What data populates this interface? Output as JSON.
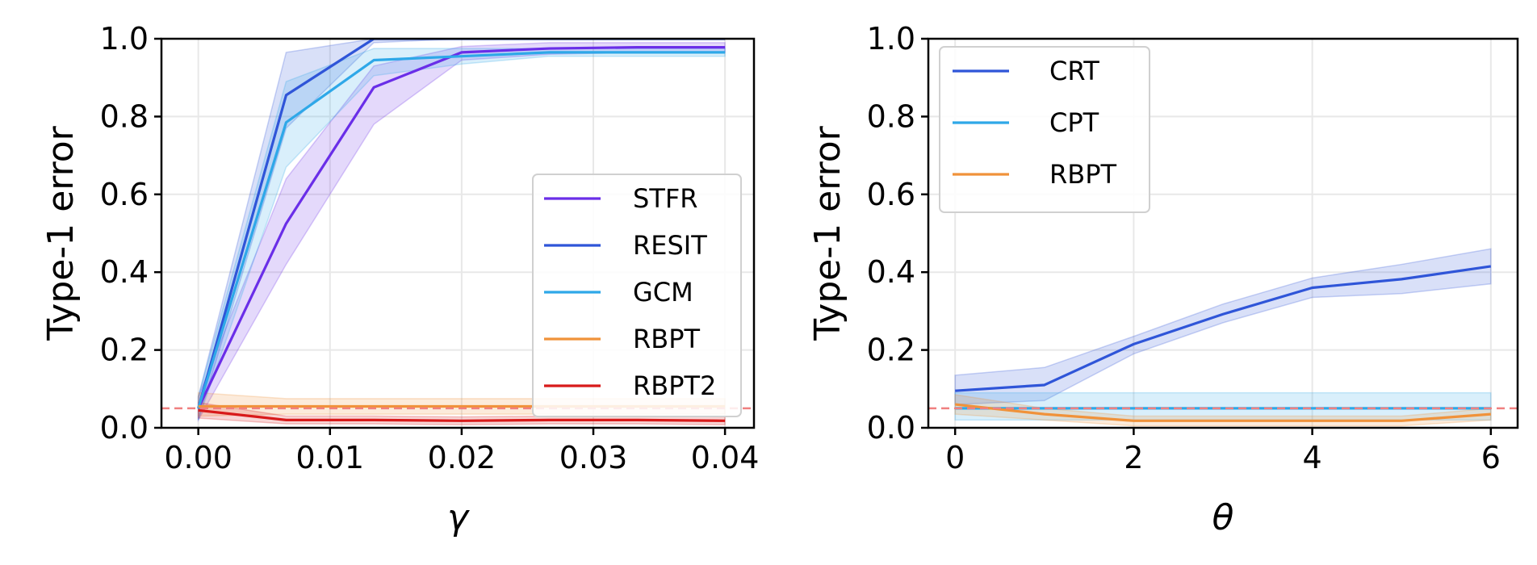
{
  "chart_data": [
    {
      "type": "line",
      "xlabel": "γ",
      "ylabel": "Type-1 error",
      "xlim": [
        -0.0028,
        0.0422
      ],
      "ylim": [
        0.0,
        1.0
      ],
      "x_ticks": [
        0.0,
        0.01,
        0.02,
        0.03,
        0.04
      ],
      "x_tick_labels": [
        "0.00",
        "0.01",
        "0.02",
        "0.03",
        "0.04"
      ],
      "y_ticks": [
        0.0,
        0.2,
        0.4,
        0.6,
        0.8,
        1.0
      ],
      "y_tick_labels": [
        "0.0",
        "0.2",
        "0.4",
        "0.6",
        "0.8",
        "1.0"
      ],
      "grid": true,
      "legend_position": "center-right",
      "reference_line": {
        "y": 0.05,
        "color": "#f08080",
        "style": "dashed"
      },
      "x": [
        0.0,
        0.00667,
        0.01333,
        0.02,
        0.02667,
        0.03333,
        0.04
      ],
      "series": [
        {
          "name": "STFR",
          "color": "#6a2ee8",
          "values": [
            0.05,
            0.525,
            0.875,
            0.965,
            0.975,
            0.978,
            0.978
          ],
          "lower": [
            0.02,
            0.42,
            0.78,
            0.945,
            0.96,
            0.965,
            0.965
          ],
          "upper": [
            0.08,
            0.64,
            0.93,
            0.98,
            0.99,
            0.99,
            0.99
          ]
        },
        {
          "name": "RESIT",
          "color": "#2f55d8",
          "values": [
            0.05,
            0.855,
            1.0,
            1.0,
            1.0,
            1.0,
            1.0
          ],
          "lower": [
            0.02,
            0.77,
            0.99,
            1.0,
            1.0,
            1.0,
            1.0
          ],
          "upper": [
            0.08,
            0.965,
            1.0,
            1.0,
            1.0,
            1.0,
            1.0
          ]
        },
        {
          "name": "GCM",
          "color": "#2ea8e8",
          "values": [
            0.05,
            0.785,
            0.945,
            0.955,
            0.965,
            0.965,
            0.965
          ],
          "lower": [
            0.02,
            0.67,
            0.905,
            0.935,
            0.955,
            0.955,
            0.955
          ],
          "upper": [
            0.08,
            0.89,
            0.975,
            0.975,
            0.975,
            0.975,
            0.975
          ]
        },
        {
          "name": "RBPT",
          "color": "#f0923a",
          "values": [
            0.055,
            0.055,
            0.055,
            0.055,
            0.055,
            0.055,
            0.055
          ],
          "lower": [
            0.03,
            0.035,
            0.035,
            0.035,
            0.035,
            0.035,
            0.035
          ],
          "upper": [
            0.09,
            0.075,
            0.075,
            0.075,
            0.075,
            0.075,
            0.075
          ]
        },
        {
          "name": "RBPT2",
          "color": "#d81a1a",
          "values": [
            0.045,
            0.02,
            0.02,
            0.018,
            0.02,
            0.02,
            0.018
          ],
          "lower": [
            0.025,
            0.01,
            0.01,
            0.008,
            0.01,
            0.01,
            0.008
          ],
          "upper": [
            0.065,
            0.03,
            0.03,
            0.028,
            0.03,
            0.03,
            0.028
          ]
        }
      ]
    },
    {
      "type": "line",
      "xlabel": "θ",
      "ylabel": "Type-1 error",
      "xlim": [
        -0.3,
        6.3
      ],
      "ylim": [
        0.0,
        1.0
      ],
      "x_ticks": [
        0,
        2,
        4,
        6
      ],
      "x_tick_labels": [
        "0",
        "2",
        "4",
        "6"
      ],
      "y_ticks": [
        0.0,
        0.2,
        0.4,
        0.6,
        0.8,
        1.0
      ],
      "y_tick_labels": [
        "0.0",
        "0.2",
        "0.4",
        "0.6",
        "0.8",
        "1.0"
      ],
      "grid": true,
      "legend_position": "top-left",
      "reference_line": {
        "y": 0.05,
        "color": "#f08080",
        "style": "dashed"
      },
      "x": [
        0,
        1,
        2,
        3,
        4,
        5,
        6
      ],
      "series": [
        {
          "name": "CRT",
          "color": "#2f55d8",
          "values": [
            0.095,
            0.11,
            0.215,
            0.292,
            0.36,
            0.382,
            0.415
          ],
          "lower": [
            0.06,
            0.07,
            0.19,
            0.27,
            0.335,
            0.345,
            0.37
          ],
          "upper": [
            0.135,
            0.155,
            0.235,
            0.318,
            0.385,
            0.42,
            0.46
          ]
        },
        {
          "name": "CPT",
          "color": "#2ea8e8",
          "values": [
            0.05,
            0.05,
            0.05,
            0.05,
            0.05,
            0.05,
            0.05
          ],
          "lower": [
            0.02,
            0.02,
            0.02,
            0.02,
            0.02,
            0.02,
            0.02
          ],
          "upper": [
            0.09,
            0.09,
            0.09,
            0.09,
            0.09,
            0.09,
            0.09
          ]
        },
        {
          "name": "RBPT",
          "color": "#f0923a",
          "values": [
            0.06,
            0.035,
            0.018,
            0.018,
            0.018,
            0.018,
            0.035
          ],
          "lower": [
            0.035,
            0.02,
            0.005,
            0.005,
            0.005,
            0.005,
            0.02
          ],
          "upper": [
            0.085,
            0.05,
            0.03,
            0.03,
            0.03,
            0.03,
            0.05
          ]
        }
      ]
    }
  ]
}
